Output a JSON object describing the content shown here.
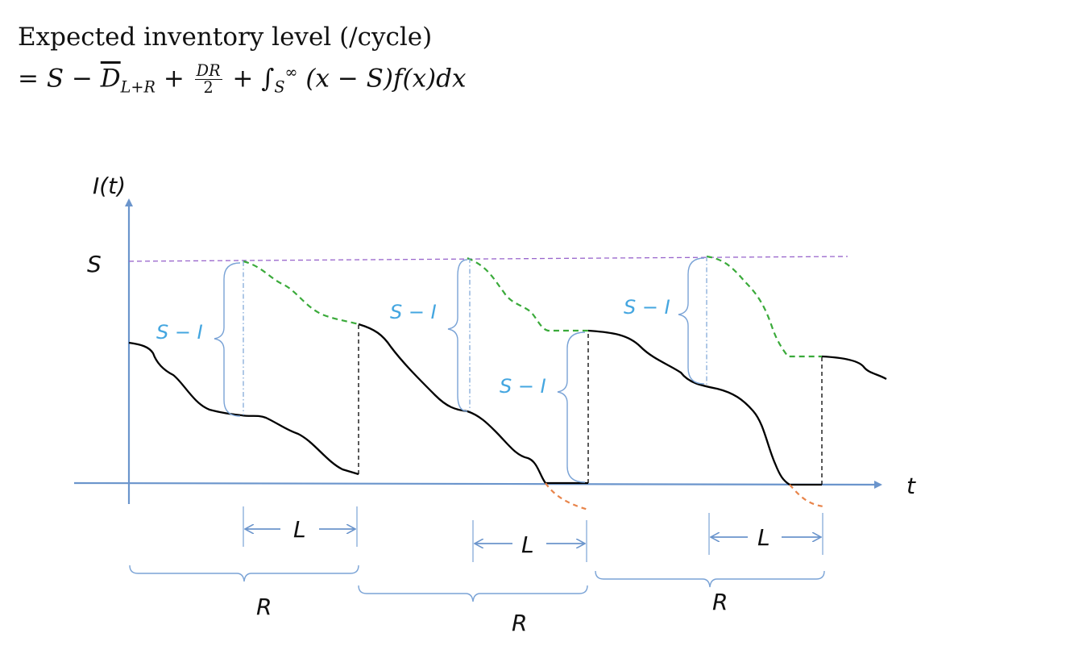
{
  "formula": {
    "line1": "Expected inventory level (/cycle)",
    "eq": "=",
    "S": "S",
    "minus": "−",
    "D": "D",
    "sub_LR": "L+R",
    "plus": "+",
    "frac_num": "DR",
    "frac_den": "2",
    "integral": "∫",
    "int_sub": "S",
    "int_sup": "∞",
    "integrand": "(x − S)f(x)dx"
  },
  "diagram": {
    "y_axis_label": "I(t)",
    "x_axis_label": "t",
    "s_level_label": "S",
    "gap_label": "S − I",
    "lead_time_label": "L",
    "review_period_label": "R",
    "colors": {
      "axis": "#6b95cc",
      "s_line": "#9966cc",
      "inventory": "#000000",
      "projected": "#3aaa3a",
      "backorder": "#e8844a",
      "annotation": "#44a6e0",
      "bracket": "#7aa3d6"
    }
  }
}
